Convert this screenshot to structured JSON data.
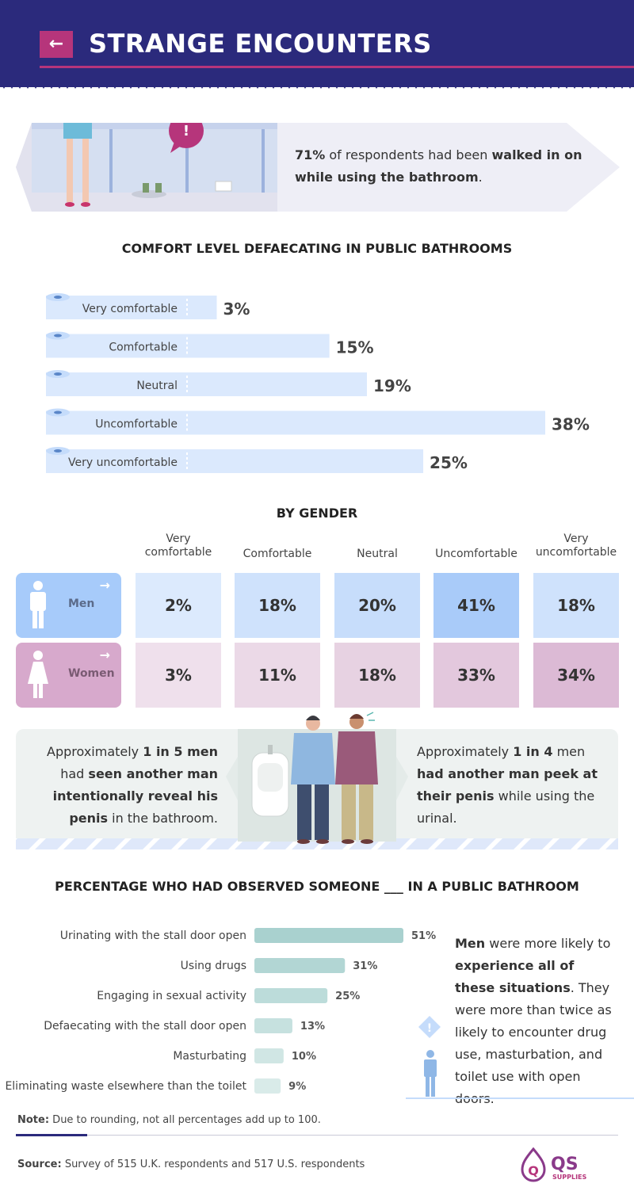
{
  "header": {
    "title": "STRANGE ENCOUNTERS",
    "back_icon": "arrow-left-icon"
  },
  "banner": {
    "stat": "71%",
    "text_1": " of respondents had been ",
    "emph": "walked in on",
    "emph2": "while using the bathroom",
    "end": "."
  },
  "colors": {
    "navy": "#2b2a7c",
    "magenta": "#b6357b",
    "men": "#bcd8fb",
    "women": "#e3c4dd",
    "teal": "#a9d1cf"
  },
  "comfort_title": "COMFORT LEVEL DEFAECATING IN PUBLIC BATHROOMS",
  "gender_title": "BY GENDER",
  "gender": {
    "columns": [
      "Very comfortable",
      "Comfortable",
      "Neutral",
      "Uncomfortable",
      "Very uncomfortable"
    ],
    "rows": [
      {
        "label": "Men",
        "values": [
          "2%",
          "18%",
          "20%",
          "41%",
          "18%"
        ]
      },
      {
        "label": "Women",
        "values": [
          "3%",
          "11%",
          "18%",
          "33%",
          "34%"
        ]
      }
    ]
  },
  "panel": {
    "left_1": "Approximately ",
    "left_b1": "1 in 5 men",
    "left_2": " had ",
    "left_b2": "seen another man intentionally reveal his penis",
    "left_3": " in the bathroom.",
    "right_1": "Approximately ",
    "right_b1": "1 in 4",
    "right_2": " men ",
    "right_b2": "had another man peek at their penis",
    "right_3": " while using the urinal."
  },
  "observed_title": "PERCENTAGE WHO HAD OBSERVED SOMEONE ___ IN A PUBLIC BATHROOM",
  "observed_note": {
    "b1": "Men",
    "t1": " were more likely to ",
    "b2": "experience all of these situations",
    "t2": ". They were more than twice as likely to encounter drug use, masturbation, and toilet use with open doors."
  },
  "note": {
    "label": "Note:",
    "text": " Due to rounding, not all percentages add up to 100."
  },
  "source": {
    "label": "Source:",
    "text": " Survey of 515 U.K. respondents and 517 U.S. respondents"
  },
  "logo": {
    "q": "Q",
    "name": "QS",
    "sub": "SUPPLIES"
  },
  "chart_data": [
    {
      "type": "bar",
      "title": "COMFORT LEVEL DEFAECATING IN PUBLIC BATHROOMS",
      "categories": [
        "Very comfortable",
        "Comfortable",
        "Neutral",
        "Uncomfortable",
        "Very uncomfortable"
      ],
      "values": [
        3,
        15,
        19,
        38,
        25
      ],
      "labels": [
        "3%",
        "15%",
        "19%",
        "38%",
        "25%"
      ],
      "orientation": "horizontal",
      "xlim": [
        0,
        38
      ],
      "color": "#dbe9fd"
    },
    {
      "type": "table",
      "title": "BY GENDER",
      "columns": [
        "Very comfortable",
        "Comfortable",
        "Neutral",
        "Uncomfortable",
        "Very uncomfortable"
      ],
      "series": [
        {
          "name": "Men",
          "values": [
            2,
            18,
            20,
            41,
            18
          ]
        },
        {
          "name": "Women",
          "values": [
            3,
            11,
            18,
            33,
            34
          ]
        }
      ]
    },
    {
      "type": "bar",
      "title": "PERCENTAGE WHO HAD OBSERVED SOMEONE ___ IN A PUBLIC BATHROOM",
      "categories": [
        "Urinating with the stall door open",
        "Using drugs",
        "Engaging in sexual activity",
        "Defaecating with the stall door open",
        "Masturbating",
        "Eliminating waste elsewhere than the toilet"
      ],
      "values": [
        51,
        31,
        25,
        13,
        10,
        9
      ],
      "labels": [
        "51%",
        "31%",
        "25%",
        "13%",
        "10%",
        "9%"
      ],
      "orientation": "horizontal",
      "xlim": [
        0,
        51
      ]
    }
  ]
}
